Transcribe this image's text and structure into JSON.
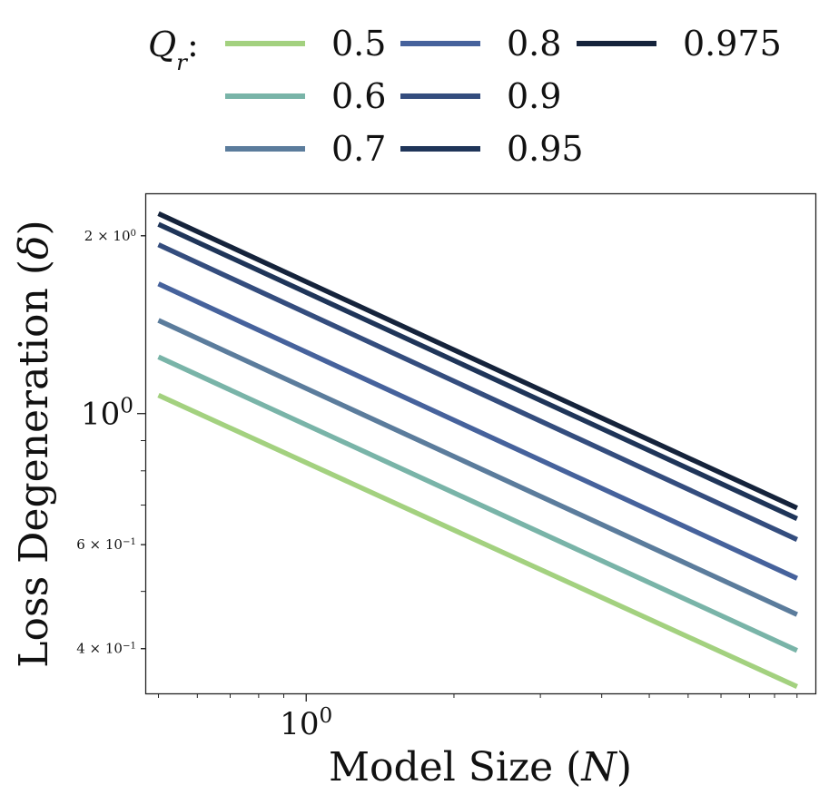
{
  "chart_data": {
    "type": "line",
    "scale": {
      "x": "log",
      "y": "log"
    },
    "xlabel": "Model Size (N)",
    "ylabel": "Loss Degeneration (δ)",
    "xlim": [
      0.47,
      10.9
    ],
    "ylim": [
      0.336,
      2.36
    ],
    "x_ticks": [
      {
        "value": 1,
        "label": "10⁰"
      }
    ],
    "y_ticks": [
      {
        "value": 2,
        "label": "2 × 10⁰"
      },
      {
        "value": 1,
        "label": "10⁰"
      },
      {
        "value": 0.6,
        "label": "6 × 10⁻¹"
      },
      {
        "value": 0.4,
        "label": "4 × 10⁻¹"
      }
    ],
    "legend": {
      "title": "Q_r:",
      "placement": "top",
      "columns": 3
    },
    "x": [
      0.5,
      10
    ],
    "series": [
      {
        "name": "0.5",
        "color": "#a3d17f",
        "values": [
          1.074,
          0.345
        ]
      },
      {
        "name": "0.6",
        "color": "#79b4a8",
        "values": [
          1.247,
          0.397
        ]
      },
      {
        "name": "0.7",
        "color": "#5b7c9c",
        "values": [
          1.438,
          0.457
        ]
      },
      {
        "name": "0.8",
        "color": "#46629c",
        "values": [
          1.658,
          0.526
        ]
      },
      {
        "name": "0.9",
        "color": "#344d7e",
        "values": [
          1.932,
          0.612
        ]
      },
      {
        "name": "0.95",
        "color": "#1f3559",
        "values": [
          2.092,
          0.664
        ]
      },
      {
        "name": "0.975",
        "color": "#15233b",
        "values": [
          2.18,
          0.692
        ]
      }
    ]
  }
}
